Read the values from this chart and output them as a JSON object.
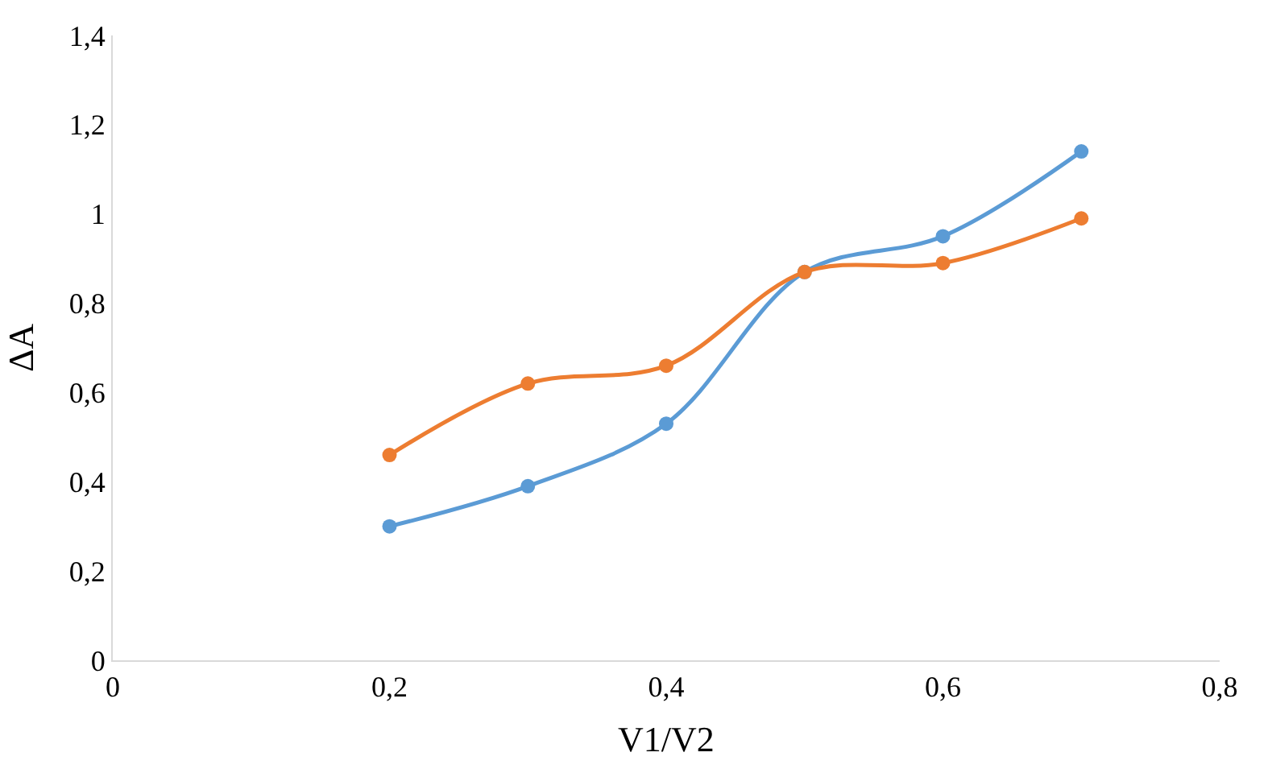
{
  "chart_data": {
    "type": "line",
    "xlabel": "V1/V2",
    "ylabel": "ΔA",
    "xlim": [
      0,
      0.8
    ],
    "xticks": [
      0,
      {
        "value": 0.2,
        "label": "0,2"
      },
      {
        "value": 0.4,
        "label": "0,4"
      },
      {
        "value": 0.6,
        "label": "0,6"
      },
      {
        "value": 0.8,
        "label": "0,8"
      }
    ],
    "ylim": [
      0,
      1.4
    ],
    "yticks": [
      0,
      {
        "value": 0.2,
        "label": "0,2"
      },
      {
        "value": 0.4,
        "label": "0,4"
      },
      {
        "value": 0.6,
        "label": "0,6"
      },
      {
        "value": 0.8,
        "label": "0,8"
      },
      1,
      {
        "value": 1.2,
        "label": "1,2"
      },
      {
        "value": 1.4,
        "label": "1,4"
      }
    ],
    "x": [
      0.2,
      0.3,
      0.4,
      0.5,
      0.6,
      0.7
    ],
    "series": [
      {
        "color": "#5b9bd5",
        "values": [
          0.3,
          0.39,
          0.53,
          0.87,
          0.95,
          1.14
        ]
      },
      {
        "color": "#ed7d31",
        "values": [
          0.46,
          0.62,
          0.66,
          0.87,
          0.89,
          0.99
        ]
      }
    ],
    "marker": "circle",
    "line_style": "solid"
  }
}
